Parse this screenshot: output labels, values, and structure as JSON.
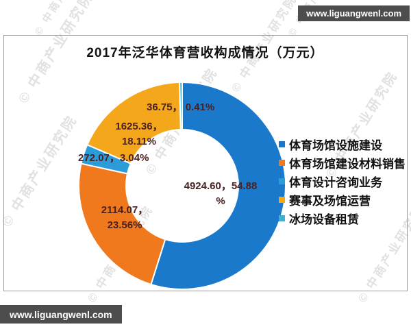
{
  "page": {
    "banner_top": "www.liguangwenl.com",
    "banner_bottom": "www.liguangwenl.com",
    "background_watermark": "© 中商产业研究院"
  },
  "chart_data": {
    "type": "pie",
    "subtype": "donut",
    "title": "2017年泛华体育营收构成情况（万元）",
    "unit": "万元",
    "legend_position": "right",
    "series": [
      {
        "name": "体育场馆设施建设",
        "value": 4924.6,
        "percent": 54.88,
        "color": "#1B79CB",
        "label_lines": [
          "4924.60，54.88",
          "%"
        ]
      },
      {
        "name": "体育场馆建设材料销售",
        "value": 2114.07,
        "percent": 23.56,
        "color": "#F1791D",
        "label_lines": [
          "2114.07，",
          "23.56%"
        ]
      },
      {
        "name": "体育设计咨询业务",
        "value": 272.07,
        "percent": 3.04,
        "color": "#2B9CD8",
        "label_lines": [
          "272.07，3.04%"
        ]
      },
      {
        "name": "赛事及场馆运营",
        "value": 1625.36,
        "percent": 18.11,
        "color": "#F5A71B",
        "label_lines": [
          "1625.36，",
          "18.11%"
        ]
      },
      {
        "name": "冰场设备租赁",
        "value": 36.75,
        "percent": 0.41,
        "color": "#3FB1CE",
        "label_lines": [
          "36.75， 0.41%"
        ]
      }
    ]
  }
}
